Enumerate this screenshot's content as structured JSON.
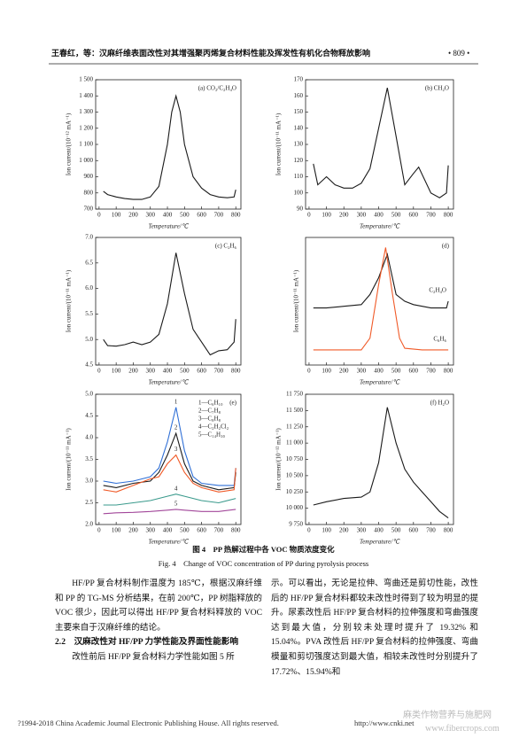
{
  "header": {
    "title": "王春红，等：汉麻纤维表面改性对其增强聚丙烯复合材料性能及挥发性有机化合物释放影响",
    "page": "• 809 •"
  },
  "figure": {
    "caption_cn": "图 4　PP 热解过程中各 VOC 物质浓度变化",
    "caption_en": "Fig. 4　Change of VOC concentration of PP during pyrolysis process",
    "panels": [
      {
        "type": "line",
        "label": "(a) CO₂/C₂H₄O",
        "xlabel": "Temperature/℃",
        "ylabel": "Ion current/(10⁻¹² mA⁻¹)",
        "xlim": [
          -20,
          830
        ],
        "xticks": [
          0,
          100,
          200,
          300,
          400,
          500,
          600,
          700,
          800
        ],
        "ylim": [
          700,
          1500
        ],
        "yticks": [
          700,
          800,
          900,
          {
            "value": 1000,
            "label": "1 000"
          },
          {
            "value": 1100,
            "label": "1 100"
          },
          {
            "value": 1200,
            "label": "1 200"
          },
          {
            "value": 1300,
            "label": "1 300"
          },
          {
            "value": 1400,
            "label": "1 400"
          },
          {
            "value": 1500,
            "label": "1 500"
          }
        ],
        "series": [
          {
            "color": "#1a1a1a",
            "x": [
              25,
              50,
              100,
              150,
              200,
              250,
              300,
              350,
              400,
              425,
              450,
              475,
              500,
              550,
              600,
              650,
              700,
              750,
              790,
              800
            ],
            "values": [
              810,
              790,
              775,
              765,
              760,
              760,
              775,
              840,
              1100,
              1300,
              1400,
              1300,
              1100,
              900,
              830,
              790,
              775,
              770,
              775,
              820
            ]
          }
        ]
      },
      {
        "type": "line",
        "label": "(b) CH₂O",
        "xlabel": "Temperature/℃",
        "ylabel": "Ion current/(10⁻¹¹ mA⁻¹)",
        "xlim": [
          -20,
          830
        ],
        "xticks": [
          0,
          100,
          200,
          300,
          400,
          500,
          600,
          700,
          800
        ],
        "ylim": [
          90,
          170
        ],
        "yticks": [
          90,
          100,
          110,
          120,
          130,
          140,
          150,
          160,
          170
        ],
        "series": [
          {
            "color": "#1a1a1a",
            "x": [
              25,
              50,
              100,
              150,
              200,
              250,
              300,
              350,
              400,
              450,
              500,
              550,
              600,
              630,
              700,
              750,
              790,
              800
            ],
            "values": [
              118,
              105,
              110,
              105,
              103,
              103,
              106,
              115,
              140,
              165,
              135,
              105,
              112,
              116,
              100,
              97,
              100,
              117
            ]
          }
        ]
      },
      {
        "type": "line",
        "label": "(c) C₂H₆",
        "xlabel": "Temperature/℃",
        "ylabel": "Ion current/(10⁻¹¹ mA⁻¹)",
        "xlim": [
          -20,
          830
        ],
        "xticks": [
          0,
          100,
          200,
          300,
          400,
          500,
          600,
          700,
          800
        ],
        "ylim": [
          4.5,
          7.0
        ],
        "yticks": [
          4.5,
          {
            "value": 5,
            "label": "5.0"
          },
          5.5,
          {
            "value": 6,
            "label": "6.0"
          },
          6.5,
          {
            "value": 7,
            "label": "7.0"
          }
        ],
        "series": [
          {
            "color": "#1a1a1a",
            "x": [
              25,
              50,
              100,
              150,
              200,
              250,
              300,
              350,
              400,
              450,
              500,
              550,
              600,
              650,
              700,
              750,
              790,
              800
            ],
            "values": [
              5.0,
              4.88,
              4.87,
              4.9,
              4.95,
              4.9,
              4.95,
              5.1,
              5.7,
              6.7,
              5.9,
              5.2,
              4.95,
              4.7,
              4.78,
              4.8,
              4.95,
              5.4
            ]
          }
        ]
      },
      {
        "type": "line",
        "label": "(d)",
        "xlabel": "Temperature/℃",
        "ylabel": "Ion current/(10⁻¹¹ mA⁻¹)",
        "xlim": [
          -20,
          830
        ],
        "xticks": [
          0,
          100,
          200,
          300,
          400,
          500,
          600,
          700,
          800
        ],
        "ylim": [
          4,
          42
        ],
        "series": [
          {
            "name": "C₂H₄O",
            "color": "#1a1a1a",
            "x": [
              25,
              100,
              200,
              300,
              350,
              400,
              450,
              500,
              550,
              600,
              700,
              790,
              800
            ],
            "values": [
              21,
              21,
              21.5,
              22,
              25,
              30,
              37,
              25,
              23,
              22,
              21,
              21,
              23
            ]
          },
          {
            "name": "C₆H₆",
            "color": "#f05a28",
            "x": [
              25,
              100,
              200,
              300,
              350,
              400,
              440,
              480,
              520,
              550,
              650,
              800
            ],
            "values": [
              8.5,
              8.5,
              8.5,
              8.5,
              12,
              28,
              39,
              25,
              12,
              9,
              8.5,
              8.5
            ]
          }
        ]
      },
      {
        "type": "line",
        "label": "(e)",
        "xlabel": "Temperature/℃",
        "ylabel": "Ion current/(10⁻¹¹ mA⁻¹)",
        "legend": true,
        "xlim": [
          -20,
          830
        ],
        "xticks": [
          0,
          100,
          200,
          300,
          400,
          500,
          600,
          700,
          800
        ],
        "ylim": [
          2,
          5
        ],
        "yticks": [
          {
            "value": 2,
            "label": "2.0"
          },
          2.5,
          {
            "value": 3,
            "label": "3.0"
          },
          3.5,
          {
            "value": 4,
            "label": "4.0"
          },
          4.5,
          {
            "value": 5,
            "label": "5.0"
          }
        ],
        "series": [
          {
            "name": "1—C₆H₁₀",
            "tag": "1",
            "color": "#2f6fd6",
            "x": [
              25,
              100,
              200,
              300,
              350,
              400,
              450,
              500,
              550,
              600,
              700,
              790,
              800
            ],
            "values": [
              3.0,
              2.95,
              3.0,
              3.1,
              3.3,
              3.9,
              4.7,
              3.7,
              3.1,
              2.95,
              2.9,
              2.9,
              3.3
            ]
          },
          {
            "name": "2—C₇H₈",
            "tag": "2",
            "color": "#1a1a1a",
            "x": [
              25,
              100,
              200,
              300,
              350,
              400,
              450,
              500,
              550,
              600,
              700,
              790,
              800
            ],
            "values": [
              2.9,
              2.85,
              2.95,
              3.0,
              3.2,
              3.6,
              4.1,
              3.4,
              3.0,
              2.9,
              2.8,
              2.85,
              3.2
            ]
          },
          {
            "name": "3—C₈H₈",
            "tag": "3",
            "color": "#f05a28",
            "x": [
              25,
              100,
              200,
              300,
              350,
              400,
              450,
              500,
              550,
              600,
              700,
              790,
              800
            ],
            "values": [
              2.8,
              2.75,
              2.9,
              3.05,
              3.1,
              3.4,
              3.6,
              3.2,
              2.95,
              2.85,
              2.75,
              2.8,
              3.3
            ]
          },
          {
            "name": "4—C₂H₂Cl₂",
            "tag": "4",
            "color": "#3a9a8c",
            "x": [
              25,
              100,
              200,
              300,
              400,
              450,
              500,
              600,
              700,
              800
            ],
            "values": [
              2.45,
              2.45,
              2.5,
              2.55,
              2.65,
              2.7,
              2.65,
              2.55,
              2.5,
              2.6
            ]
          },
          {
            "name": "5—C₁₄H₃₀",
            "tag": "5",
            "color": "#a2479a",
            "x": [
              25,
              100,
              200,
              300,
              400,
              450,
              500,
              600,
              700,
              800
            ],
            "values": [
              2.25,
              2.27,
              2.28,
              2.3,
              2.33,
              2.35,
              2.33,
              2.3,
              2.3,
              2.35
            ]
          }
        ]
      },
      {
        "type": "line",
        "label": "(f) H₂O",
        "xlabel": "Temperature/℃",
        "ylabel": "Ion current/(10⁻¹² mA⁻¹)",
        "xlim": [
          -20,
          830
        ],
        "xticks": [
          0,
          100,
          200,
          300,
          400,
          500,
          600,
          700,
          800
        ],
        "ylim": [
          9750,
          11750
        ],
        "yticks": [
          {
            "value": 9750,
            "label": "9 750"
          },
          {
            "value": 10000,
            "label": "10 000"
          },
          {
            "value": 10250,
            "label": "10 250"
          },
          {
            "value": 10500,
            "label": "10 500"
          },
          {
            "value": 10750,
            "label": "10 750"
          },
          {
            "value": 11000,
            "label": "11 000"
          },
          {
            "value": 11250,
            "label": "11 250"
          },
          {
            "value": 11500,
            "label": "11 500"
          },
          {
            "value": 11750,
            "label": "11 750"
          }
        ],
        "series": [
          {
            "color": "#1a1a1a",
            "x": [
              25,
              100,
              200,
              300,
              350,
              400,
              450,
              500,
              550,
              600,
              650,
              700,
              750,
              800
            ],
            "values": [
              10050,
              10100,
              10150,
              10170,
              10250,
              10700,
              11550,
              11000,
              10600,
              10400,
              10250,
              10100,
              9950,
              9850
            ]
          }
        ]
      }
    ]
  },
  "body": {
    "left": [
      "HF/PP 复合材料制作温度为 185℃，根据汉麻纤维和 PP 的 TG-MS 分析结果，在前 200℃，PP 树脂释放的 VOC 很少，因此可以得出 HF/PP 复合材料释放的 VOC 主要来自于汉麻纤维的结论。"
    ],
    "heading": "2.2　汉麻改性对 HF/PP 力学性能及界面性能影响",
    "left_after": "改性前后 HF/PP 复合材料力学性能如图 5 所",
    "right": "示。可以看出，无论是拉伸、弯曲还是剪切性能，改性后的 HF/PP 复合材料都较未改性时得到了较为明显的提升。尿素改性后 HF/PP 复合材料的拉伸强度和弯曲强度达到最大值，分别较未处理时提升了 19.32% 和 15.04%。PVA 改性后 HF/PP 复合材料的拉伸强度、弯曲模量和剪切强度达到最大值，相较未改性时分别提升了 17.72%、15.94%和"
  },
  "footer": {
    "copyright": "?1994-2018 China Academic Journal Electronic Publishing House. All rights reserved.",
    "url": "http://www.cnki.net",
    "watermark": "麻类作物营养与施肥网",
    "watermark_url": "www.fibercrops.com"
  }
}
